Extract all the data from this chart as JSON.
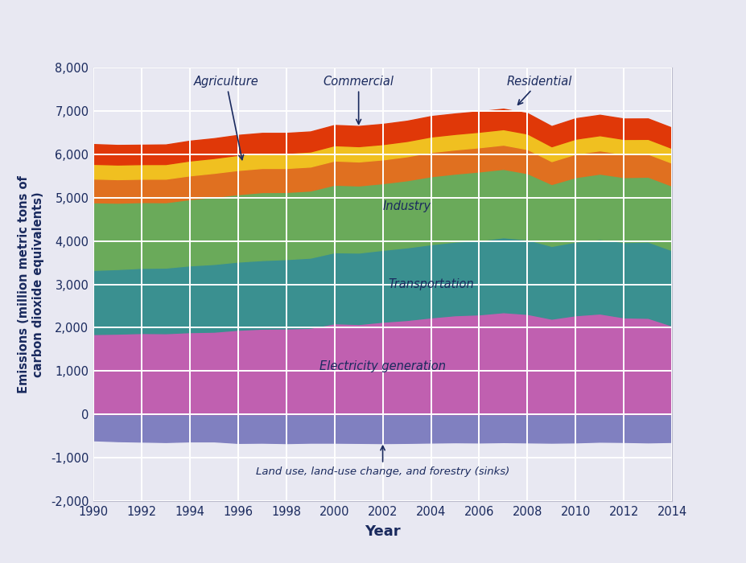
{
  "years": [
    1990,
    1991,
    1992,
    1993,
    1994,
    1995,
    1996,
    1997,
    1998,
    1999,
    2000,
    2001,
    2002,
    2003,
    2004,
    2005,
    2006,
    2007,
    2008,
    2009,
    2010,
    2011,
    2012,
    2013,
    2014
  ],
  "land_use": [
    -600,
    -620,
    -630,
    -640,
    -625,
    -625,
    -660,
    -655,
    -665,
    -655,
    -655,
    -660,
    -665,
    -660,
    -652,
    -645,
    -650,
    -642,
    -648,
    -655,
    -648,
    -632,
    -638,
    -648,
    -638
  ],
  "electricity": [
    1850,
    1860,
    1875,
    1870,
    1895,
    1905,
    1950,
    1975,
    1980,
    1995,
    2100,
    2082,
    2135,
    2175,
    2235,
    2285,
    2305,
    2355,
    2315,
    2205,
    2285,
    2325,
    2235,
    2225,
    2045
  ],
  "transportation": [
    1480,
    1490,
    1502,
    1513,
    1540,
    1562,
    1572,
    1582,
    1600,
    1618,
    1638,
    1648,
    1658,
    1675,
    1688,
    1698,
    1708,
    1728,
    1718,
    1678,
    1698,
    1718,
    1738,
    1758,
    1738
  ],
  "industry": [
    1560,
    1530,
    1518,
    1508,
    1528,
    1548,
    1555,
    1568,
    1548,
    1548,
    1558,
    1548,
    1538,
    1548,
    1568,
    1568,
    1588,
    1578,
    1528,
    1428,
    1488,
    1508,
    1498,
    1498,
    1488
  ],
  "residential": [
    548,
    543,
    538,
    543,
    548,
    553,
    558,
    556,
    553,
    553,
    558,
    553,
    548,
    553,
    558,
    558,
    558,
    558,
    556,
    528,
    538,
    538,
    533,
    528,
    528
  ],
  "commercial": [
    338,
    338,
    338,
    338,
    343,
    343,
    348,
    348,
    348,
    348,
    353,
    353,
    353,
    353,
    358,
    358,
    358,
    358,
    358,
    343,
    348,
    348,
    346,
    343,
    340
  ],
  "agriculture": [
    458,
    453,
    448,
    453,
    458,
    458,
    463,
    463,
    463,
    463,
    468,
    468,
    468,
    468,
    473,
    473,
    473,
    473,
    473,
    468,
    473,
    473,
    473,
    473,
    473
  ],
  "colors": {
    "land_use": "#8080c0",
    "electricity": "#c060b0",
    "transportation": "#3a9090",
    "industry": "#6aaa5a",
    "residential": "#e07020",
    "commercial": "#f0c020",
    "agriculture": "#e03808"
  },
  "xlabel": "Year",
  "ylabel": "Emissions (million metric tons of\ncarbon dioxide equivalents)",
  "ylim": [
    -2000,
    8000
  ],
  "xlim": [
    1990,
    2014
  ],
  "yticks": [
    -2000,
    -1000,
    0,
    1000,
    2000,
    3000,
    4000,
    5000,
    6000,
    7000,
    8000
  ],
  "xticks": [
    1990,
    1992,
    1994,
    1996,
    1998,
    2000,
    2002,
    2004,
    2006,
    2008,
    2010,
    2012,
    2014
  ],
  "bg_color": "#e8e8f2",
  "plot_bg": "#e8e8f2",
  "text_color": "#1a2a5e"
}
